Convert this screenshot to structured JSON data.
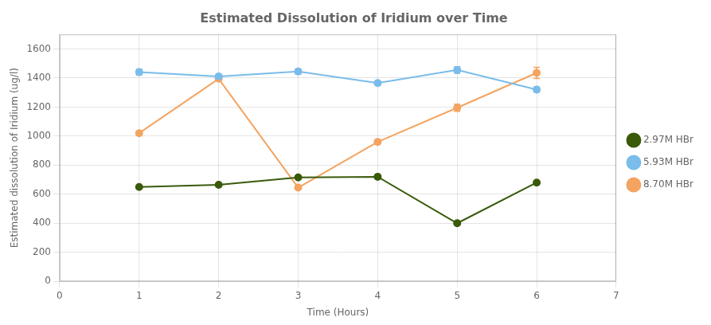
{
  "chart_data": {
    "type": "line",
    "title": "Estimated Dissolution of Iridium over Time",
    "xlabel": "Time (Hours)",
    "ylabel": "Estimated dissolution of Iridium (ug/l)",
    "x": [
      1,
      2,
      3,
      4,
      5,
      6
    ],
    "series": [
      {
        "name": "2.97M HBr",
        "color": "#3a5a0a",
        "values": [
          650,
          665,
          715,
          720,
          400,
          680
        ],
        "errors": [
          null,
          null,
          null,
          null,
          null,
          null
        ]
      },
      {
        "name": "5.93M HBr",
        "color": "#7abcea",
        "values": [
          1440,
          1410,
          1445,
          1365,
          1455,
          1320
        ],
        "errors": [
          20,
          15,
          18,
          12,
          22,
          18
        ]
      },
      {
        "name": "8.70M HBr",
        "color": "#f4a460",
        "values": [
          1020,
          1395,
          645,
          960,
          1195,
          1435
        ],
        "errors": [
          null,
          null,
          null,
          null,
          25,
          38
        ]
      }
    ],
    "xlim": [
      0,
      7
    ],
    "ylim": [
      0,
      1700
    ],
    "xticks": [
      0,
      1,
      2,
      3,
      4,
      5,
      6,
      7
    ],
    "yticks": [
      0,
      200,
      400,
      600,
      800,
      1000,
      1200,
      1400,
      1600
    ],
    "grid": true,
    "legend": "right",
    "marker": "circle"
  }
}
